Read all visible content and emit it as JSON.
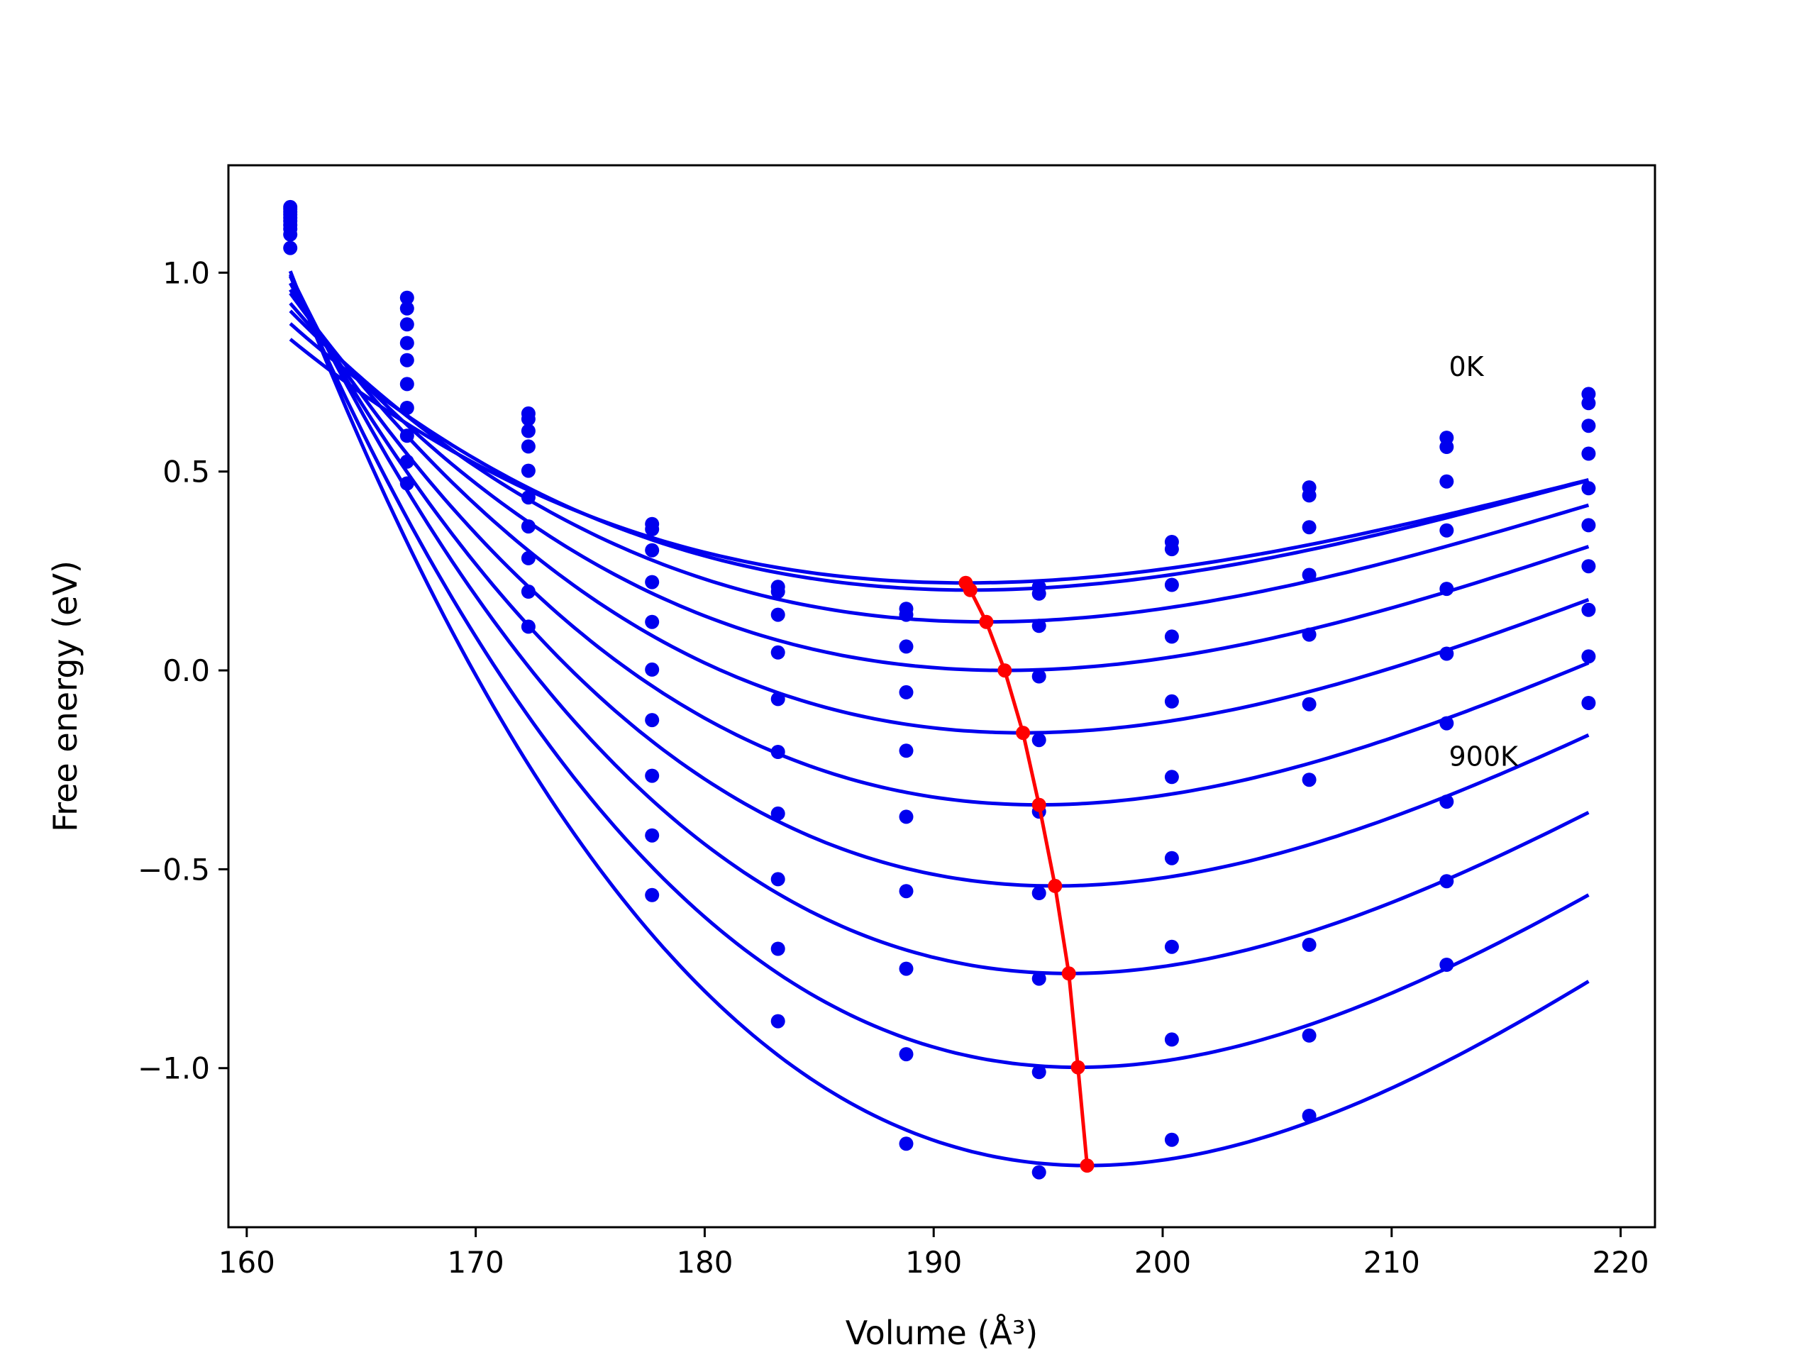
{
  "chart_data": {
    "type": "scatter",
    "title": "",
    "xlabel": "Volume (Å³)",
    "ylabel": "Free energy (eV)",
    "xlim": [
      159.2,
      221.5
    ],
    "ylim": [
      -1.4,
      1.27
    ],
    "x_ticks": [
      160,
      170,
      180,
      190,
      200,
      210,
      220
    ],
    "x_tick_labels": [
      "160",
      "170",
      "180",
      "190",
      "200",
      "210",
      "220"
    ],
    "y_ticks": [
      -1.0,
      -0.5,
      0.0,
      0.5,
      1.0
    ],
    "y_tick_labels": [
      "−1.0",
      "−0.5",
      "0.0",
      "0.5",
      "1.0"
    ],
    "grid": false,
    "legend": "none",
    "colors": {
      "fit_curves": "#0000ee",
      "data_points": "#0000ee",
      "minimum_path": "#ff0000"
    },
    "volumes": [
      161.9,
      167.0,
      172.3,
      177.7,
      183.2,
      188.8,
      194.6,
      200.4,
      206.4,
      212.4,
      218.6
    ],
    "series": [
      {
        "values": [
          1.062,
          0.937,
          0.646,
          0.368,
          0.21,
          0.155,
          0.21,
          0.323,
          0.46,
          0.585,
          0.695
        ]
      },
      {
        "values": [
          1.096,
          0.91,
          0.632,
          0.355,
          0.198,
          0.14,
          0.193,
          0.305,
          0.44,
          0.562,
          0.672
        ]
      },
      {
        "values": [
          1.11,
          0.87,
          0.602,
          0.302,
          0.14,
          0.06,
          0.112,
          0.215,
          0.36,
          0.475,
          0.615
        ]
      },
      {
        "values": [
          1.12,
          0.823,
          0.563,
          0.222,
          0.045,
          -0.055,
          -0.015,
          0.085,
          0.24,
          0.352,
          0.545
        ]
      },
      {
        "values": [
          1.13,
          0.78,
          0.502,
          0.122,
          -0.072,
          -0.202,
          -0.175,
          -0.078,
          0.09,
          0.205,
          0.458
        ]
      },
      {
        "values": [
          1.138,
          0.72,
          0.435,
          0.002,
          -0.205,
          -0.368,
          -0.355,
          -0.268,
          -0.085,
          0.042,
          0.365
        ]
      },
      {
        "values": [
          1.146,
          0.66,
          0.362,
          -0.125,
          -0.36,
          -0.555,
          -0.56,
          -0.472,
          -0.275,
          -0.133,
          0.262
        ]
      },
      {
        "values": [
          1.153,
          0.59,
          0.282,
          -0.265,
          -0.525,
          -0.75,
          -0.775,
          -0.695,
          -0.69,
          -0.33,
          0.152
        ]
      },
      {
        "values": [
          1.16,
          0.525,
          0.198,
          -0.415,
          -0.7,
          -0.965,
          -1.01,
          -0.928,
          -0.918,
          -0.53,
          0.035
        ]
      },
      {
        "values": [
          1.165,
          0.47,
          0.11,
          -0.565,
          -0.882,
          -1.19,
          -1.262,
          -1.18,
          -1.12,
          -0.74,
          -0.082
        ]
      }
    ],
    "fit_minima": [
      {
        "v": 191.4,
        "f": 0.22,
        "a": 0.00052
      },
      {
        "v": 191.6,
        "f": 0.202,
        "a": 0.00056
      },
      {
        "v": 192.3,
        "f": 0.122,
        "a": 0.00062
      },
      {
        "v": 193.1,
        "f": 0.0,
        "a": 0.00069
      },
      {
        "v": 193.9,
        "f": -0.157,
        "a": 0.00078
      },
      {
        "v": 194.6,
        "f": -0.338,
        "a": 0.00087
      },
      {
        "v": 195.3,
        "f": -0.542,
        "a": 0.00097
      },
      {
        "v": 195.9,
        "f": -0.762,
        "a": 0.00108
      },
      {
        "v": 196.3,
        "f": -0.998,
        "a": 0.00119
      },
      {
        "v": 196.7,
        "f": -1.245,
        "a": 0.00131
      }
    ],
    "annotations": [
      {
        "text": "0K",
        "x": 212.5,
        "y": 0.74
      },
      {
        "text": "900K",
        "x": 212.5,
        "y": -0.24
      }
    ]
  }
}
